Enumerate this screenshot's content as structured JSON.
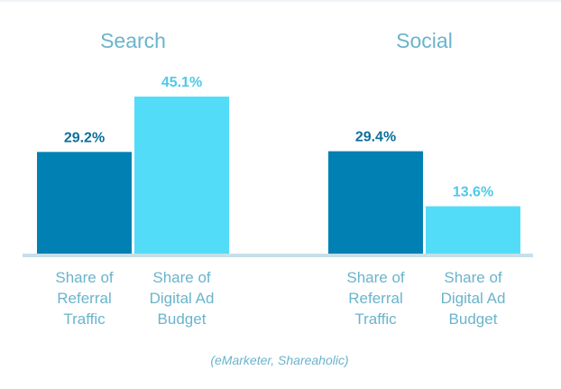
{
  "chart_data": {
    "type": "bar",
    "groups": [
      {
        "title": "Search",
        "bars": [
          {
            "category": "Share of Referral Traffic",
            "lines": [
              "Share of",
              "Referral",
              "Traffic"
            ],
            "value": 29.2,
            "label": "29.2%"
          },
          {
            "category": "Share of Digital Ad Budget",
            "lines": [
              "Share of",
              "Digital Ad",
              "Budget"
            ],
            "value": 45.1,
            "label": "45.1%"
          }
        ]
      },
      {
        "title": "Social",
        "bars": [
          {
            "category": "Share of Referral Traffic",
            "lines": [
              "Share of",
              "Referral",
              "Traffic"
            ],
            "value": 29.4,
            "label": "29.4%"
          },
          {
            "category": "Share of Digital Ad Budget",
            "lines": [
              "Share of",
              "Digital Ad",
              "Budget"
            ],
            "value": 13.6,
            "label": "13.6%"
          }
        ]
      }
    ],
    "ylim": [
      0,
      45.1
    ],
    "grid": false,
    "source": "(eMarketer, Shareaholic)"
  },
  "colors": {
    "referral": "#0080b3",
    "budget": "#53dcf7",
    "referral_label": "#0d6f9b",
    "budget_label": "#4ec9e9",
    "axis": "#c6dfe8"
  }
}
